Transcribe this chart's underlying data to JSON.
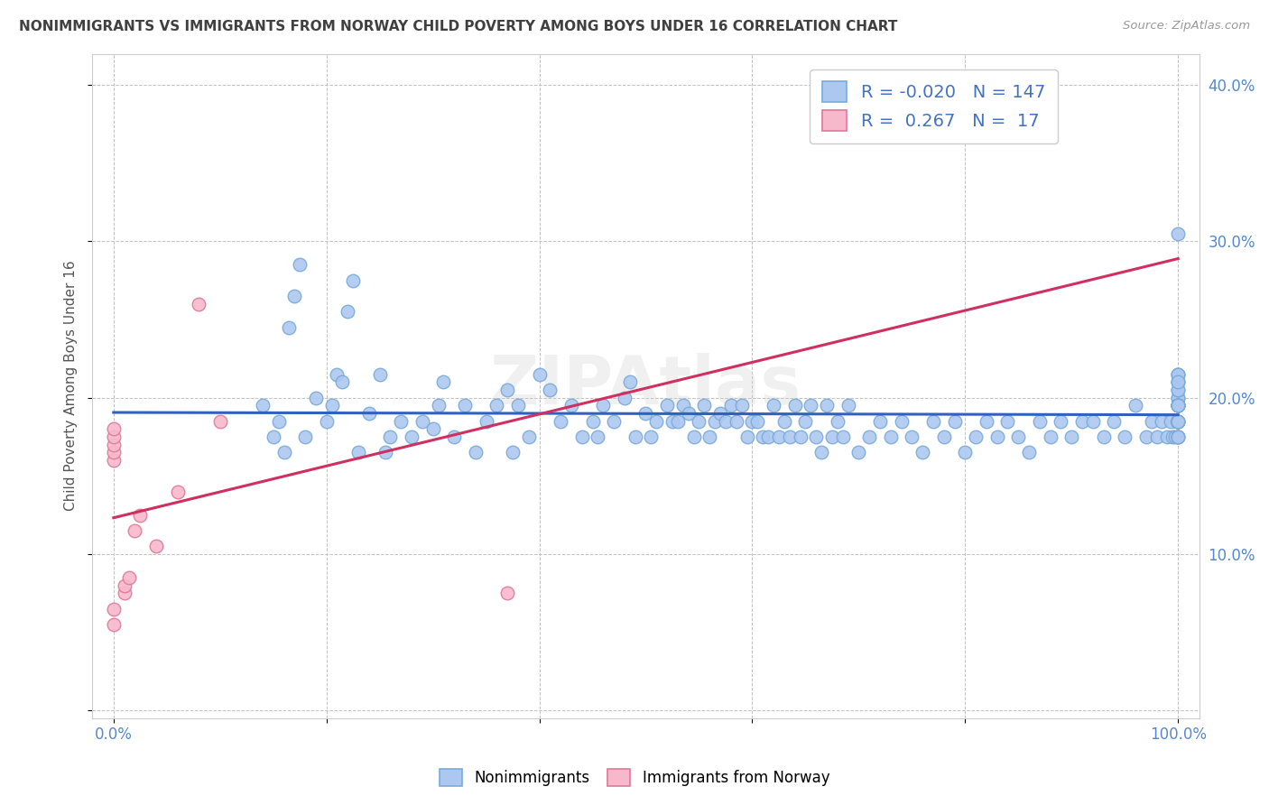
{
  "title": "NONIMMIGRANTS VS IMMIGRANTS FROM NORWAY CHILD POVERTY AMONG BOYS UNDER 16 CORRELATION CHART",
  "source": "Source: ZipAtlas.com",
  "ylabel_label": "Child Poverty Among Boys Under 16",
  "xlim": [
    -0.02,
    1.02
  ],
  "ylim": [
    -0.005,
    0.42
  ],
  "nonimm_color": "#adc8f0",
  "nonimm_edge": "#7aaad8",
  "imm_color": "#f8b8cc",
  "imm_edge": "#e07898",
  "trendline_nonimm": "#3060c0",
  "trendline_imm": "#d03060",
  "trendline_imm_dashed": true,
  "R_nonimm": -0.02,
  "N_nonimm": 147,
  "R_imm": 0.267,
  "N_imm": 17,
  "watermark": "ZIPAtlas",
  "nonimm_x": [
    0.14,
    0.15,
    0.155,
    0.16,
    0.165,
    0.17,
    0.175,
    0.18,
    0.19,
    0.2,
    0.205,
    0.21,
    0.215,
    0.22,
    0.225,
    0.23,
    0.24,
    0.25,
    0.255,
    0.26,
    0.27,
    0.28,
    0.29,
    0.3,
    0.305,
    0.31,
    0.32,
    0.33,
    0.34,
    0.35,
    0.36,
    0.37,
    0.375,
    0.38,
    0.39,
    0.4,
    0.41,
    0.42,
    0.43,
    0.44,
    0.45,
    0.455,
    0.46,
    0.47,
    0.48,
    0.485,
    0.49,
    0.5,
    0.505,
    0.51,
    0.52,
    0.525,
    0.53,
    0.535,
    0.54,
    0.545,
    0.55,
    0.555,
    0.56,
    0.565,
    0.57,
    0.575,
    0.58,
    0.585,
    0.59,
    0.595,
    0.6,
    0.605,
    0.61,
    0.615,
    0.62,
    0.625,
    0.63,
    0.635,
    0.64,
    0.645,
    0.65,
    0.655,
    0.66,
    0.665,
    0.67,
    0.675,
    0.68,
    0.685,
    0.69,
    0.7,
    0.71,
    0.72,
    0.73,
    0.74,
    0.75,
    0.76,
    0.77,
    0.78,
    0.79,
    0.8,
    0.81,
    0.82,
    0.83,
    0.84,
    0.85,
    0.86,
    0.87,
    0.88,
    0.89,
    0.9,
    0.91,
    0.92,
    0.93,
    0.94,
    0.95,
    0.96,
    0.97,
    0.975,
    0.98,
    0.985,
    0.99,
    0.993,
    0.995,
    0.997,
    0.999,
    1.0,
    1.0,
    1.0,
    1.0,
    1.0,
    1.0,
    1.0,
    1.0,
    1.0,
    1.0,
    1.0,
    1.0,
    1.0,
    1.0,
    1.0,
    1.0,
    1.0,
    1.0,
    1.0,
    1.0,
    1.0,
    1.0,
    1.0,
    1.0,
    1.0,
    1.0
  ],
  "nonimm_y": [
    0.195,
    0.175,
    0.185,
    0.165,
    0.245,
    0.265,
    0.285,
    0.175,
    0.2,
    0.185,
    0.195,
    0.215,
    0.21,
    0.255,
    0.275,
    0.165,
    0.19,
    0.215,
    0.165,
    0.175,
    0.185,
    0.175,
    0.185,
    0.18,
    0.195,
    0.21,
    0.175,
    0.195,
    0.165,
    0.185,
    0.195,
    0.205,
    0.165,
    0.195,
    0.175,
    0.215,
    0.205,
    0.185,
    0.195,
    0.175,
    0.185,
    0.175,
    0.195,
    0.185,
    0.2,
    0.21,
    0.175,
    0.19,
    0.175,
    0.185,
    0.195,
    0.185,
    0.185,
    0.195,
    0.19,
    0.175,
    0.185,
    0.195,
    0.175,
    0.185,
    0.19,
    0.185,
    0.195,
    0.185,
    0.195,
    0.175,
    0.185,
    0.185,
    0.175,
    0.175,
    0.195,
    0.175,
    0.185,
    0.175,
    0.195,
    0.175,
    0.185,
    0.195,
    0.175,
    0.165,
    0.195,
    0.175,
    0.185,
    0.175,
    0.195,
    0.165,
    0.175,
    0.185,
    0.175,
    0.185,
    0.175,
    0.165,
    0.185,
    0.175,
    0.185,
    0.165,
    0.175,
    0.185,
    0.175,
    0.185,
    0.175,
    0.165,
    0.185,
    0.175,
    0.185,
    0.175,
    0.185,
    0.185,
    0.175,
    0.185,
    0.175,
    0.195,
    0.175,
    0.185,
    0.175,
    0.185,
    0.175,
    0.185,
    0.175,
    0.175,
    0.185,
    0.185,
    0.175,
    0.185,
    0.21,
    0.175,
    0.185,
    0.195,
    0.2,
    0.21,
    0.215,
    0.215,
    0.185,
    0.195,
    0.195,
    0.2,
    0.195,
    0.205,
    0.205,
    0.195,
    0.195,
    0.195,
    0.215,
    0.195,
    0.21,
    0.175,
    0.305
  ],
  "imm_x": [
    0.0,
    0.0,
    0.0,
    0.0,
    0.0,
    0.0,
    0.0,
    0.01,
    0.01,
    0.015,
    0.02,
    0.025,
    0.04,
    0.06,
    0.08,
    0.1,
    0.37
  ],
  "imm_y": [
    0.16,
    0.165,
    0.17,
    0.175,
    0.18,
    0.065,
    0.055,
    0.075,
    0.08,
    0.085,
    0.115,
    0.125,
    0.105,
    0.14,
    0.26,
    0.185,
    0.075
  ]
}
